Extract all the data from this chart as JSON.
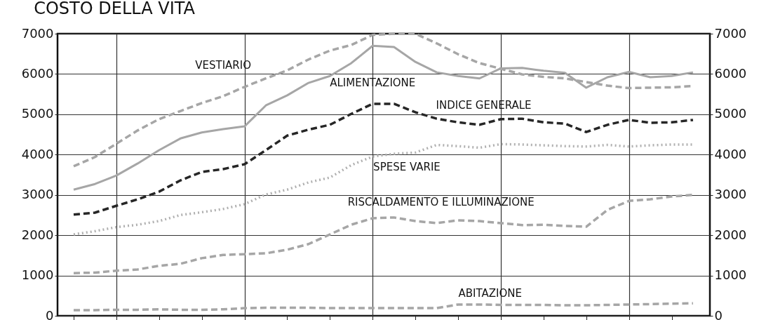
{
  "chart_data": {
    "type": "line",
    "title": "COSTO DELLA VITA",
    "categories": [
      null,
      null,
      null,
      null,
      null,
      null,
      null,
      null,
      null,
      null,
      null,
      null,
      null,
      null,
      null,
      null,
      null,
      null,
      null,
      null,
      null,
      null,
      null,
      null,
      null,
      null,
      null,
      null,
      null,
      null
    ],
    "ylim": [
      0,
      7000
    ],
    "yticks": [
      0,
      1000,
      2000,
      3000,
      4000,
      5000,
      6000,
      7000
    ],
    "y2lim": [
      0,
      7000
    ],
    "y2ticks": [
      0,
      1000,
      2000,
      3000,
      4000,
      5000,
      6000,
      7000
    ],
    "grid": true,
    "legend": false,
    "series": [
      {
        "name": "VESTIARIO",
        "color": "#a6a6a6",
        "line_style": "dashed",
        "values": [
          3710,
          3940,
          4270,
          4600,
          4880,
          5080,
          5280,
          5450,
          5680,
          5890,
          6090,
          6360,
          6580,
          6720,
          6970,
          7000,
          7000,
          6760,
          6490,
          6270,
          6130,
          5990,
          5930,
          5890,
          5800,
          5710,
          5650,
          5660,
          5670,
          5700
        ]
      },
      {
        "name": "ALIMENTAZIONE",
        "color": "#a6a6a6",
        "line_style": "solid",
        "values": [
          3130,
          3270,
          3480,
          3780,
          4110,
          4400,
          4550,
          4630,
          4700,
          5220,
          5470,
          5780,
          5950,
          6270,
          6700,
          6670,
          6300,
          6040,
          5950,
          5890,
          6140,
          6150,
          6080,
          6030,
          5660,
          5920,
          6050,
          5920,
          5950,
          6040
        ]
      },
      {
        "name": "INDICE GENERALE",
        "color": "#262626",
        "line_style": "dashed",
        "values": [
          2510,
          2560,
          2730,
          2890,
          3080,
          3360,
          3570,
          3640,
          3760,
          4110,
          4470,
          4620,
          4740,
          5010,
          5260,
          5260,
          5050,
          4890,
          4800,
          4740,
          4880,
          4890,
          4800,
          4770,
          4560,
          4740,
          4860,
          4790,
          4800,
          4860
        ]
      },
      {
        "name": "SPESE VARIE",
        "color": "#b0b0b0",
        "line_style": "dotted",
        "values": [
          2020,
          2100,
          2200,
          2260,
          2350,
          2500,
          2570,
          2650,
          2770,
          3010,
          3130,
          3310,
          3430,
          3740,
          3950,
          4020,
          4050,
          4240,
          4210,
          4170,
          4260,
          4250,
          4230,
          4210,
          4200,
          4240,
          4200,
          4230,
          4250,
          4250
        ]
      },
      {
        "name": "RISCALDAMENTO E ILLUMINAZIONE",
        "color": "#a6a6a6",
        "line_style": "dashed",
        "values": [
          1060,
          1070,
          1120,
          1150,
          1240,
          1290,
          1430,
          1510,
          1530,
          1550,
          1640,
          1780,
          2020,
          2260,
          2420,
          2440,
          2350,
          2300,
          2370,
          2350,
          2300,
          2250,
          2260,
          2230,
          2210,
          2630,
          2850,
          2890,
          2960,
          3000
        ]
      },
      {
        "name": "ABITAZIONE",
        "color": "#a6a6a6",
        "line_style": "dashed",
        "values": [
          140,
          140,
          150,
          150,
          160,
          150,
          150,
          160,
          190,
          200,
          200,
          200,
          190,
          190,
          190,
          190,
          190,
          190,
          280,
          280,
          270,
          270,
          270,
          260,
          260,
          270,
          280,
          290,
          300,
          310
        ]
      }
    ]
  }
}
